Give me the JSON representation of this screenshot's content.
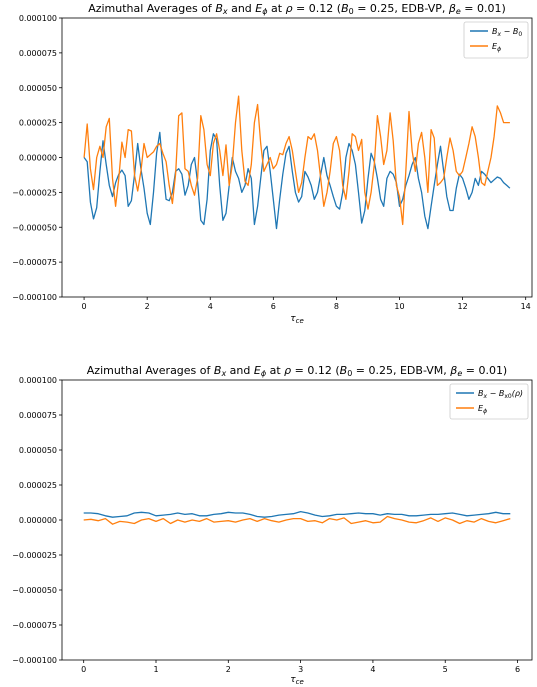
{
  "chart_data": [
    {
      "type": "line",
      "title": "Azimuthal Averages of B_x and E_φ at ρ = 0.12 (B_0 = 0.25, EDB-VP, β_e = 0.01)",
      "title_parts": {
        "p1": "Azimuthal Averages of ",
        "p2": "B",
        "p3": "x",
        "p4": " and ",
        "p5": "E",
        "p6": "ϕ",
        "p7": " at ",
        "p8": "ρ",
        "p9": " = 0.12 (",
        "p10": "B",
        "p11": "0",
        "p12": " = 0.25, EDB-VP, ",
        "p13": "β",
        "p14": "e",
        "p15": " = 0.01)"
      },
      "xlabel": "τ_ce",
      "xlabel_parts": {
        "main": "τ",
        "sub": "ce"
      },
      "ylabel": "",
      "xlim": [
        -0.7,
        14.2
      ],
      "ylim": [
        -0.0001,
        0.0001
      ],
      "xticks": [
        0,
        2,
        4,
        6,
        8,
        10,
        12,
        14
      ],
      "xtick_labels": [
        "0",
        "2",
        "4",
        "6",
        "8",
        "10",
        "12",
        "14"
      ],
      "yticks": [
        -0.0001,
        -7.5e-05,
        -5e-05,
        -2.5e-05,
        0,
        2.5e-05,
        5e-05,
        7.5e-05,
        0.0001
      ],
      "ytick_labels": [
        "−0.000100",
        "−0.000075",
        "−0.000050",
        "−0.000025",
        "0.000000",
        "0.000025",
        "0.000050",
        "0.000075",
        "0.000100"
      ],
      "grid": false,
      "legend_position": "top-right",
      "legend": [
        {
          "label": "B_x − B_0",
          "parts": {
            "a": "B",
            "b": "x",
            "c": " − ",
            "d": "B",
            "e": "0"
          },
          "color": "#1f77b4"
        },
        {
          "label": "E_ϕ",
          "parts": {
            "a": "E",
            "b": "ϕ"
          },
          "color": "#ff7f0e"
        }
      ],
      "series": [
        {
          "name": "B_x − B_0",
          "color": "#1f77b4",
          "x": [
            0.0,
            0.1,
            0.2,
            0.3,
            0.4,
            0.5,
            0.6,
            0.7,
            0.8,
            0.9,
            1.0,
            1.1,
            1.2,
            1.3,
            1.4,
            1.5,
            1.6,
            1.7,
            1.8,
            1.9,
            2.0,
            2.1,
            2.2,
            2.3,
            2.4,
            2.5,
            2.6,
            2.7,
            2.8,
            2.9,
            3.0,
            3.1,
            3.2,
            3.3,
            3.4,
            3.5,
            3.6,
            3.7,
            3.8,
            3.9,
            4.0,
            4.1,
            4.2,
            4.3,
            4.4,
            4.5,
            4.6,
            4.7,
            4.8,
            4.9,
            5.0,
            5.1,
            5.2,
            5.3,
            5.4,
            5.5,
            5.6,
            5.7,
            5.8,
            5.9,
            6.0,
            6.1,
            6.2,
            6.3,
            6.4,
            6.5,
            6.6,
            6.7,
            6.8,
            6.9,
            7.0,
            7.1,
            7.2,
            7.3,
            7.4,
            7.5,
            7.6,
            7.7,
            7.8,
            7.9,
            8.0,
            8.1,
            8.2,
            8.3,
            8.4,
            8.5,
            8.6,
            8.7,
            8.8,
            8.9,
            9.0,
            9.1,
            9.2,
            9.3,
            9.4,
            9.5,
            9.6,
            9.7,
            9.8,
            9.9,
            10.0,
            10.1,
            10.2,
            10.3,
            10.4,
            10.5,
            10.6,
            10.7,
            10.8,
            10.9,
            11.0,
            11.1,
            11.2,
            11.3,
            11.4,
            11.5,
            11.6,
            11.7,
            11.8,
            11.9,
            12.0,
            12.1,
            12.2,
            12.3,
            12.4,
            12.5,
            12.6,
            12.7,
            12.8,
            12.9,
            13.0,
            13.1,
            13.2,
            13.3,
            13.4,
            13.5
          ],
          "y": [
            0.0,
            -3e-06,
            -3.2e-05,
            -4.4e-05,
            -3.6e-05,
            -1e-05,
            1.2e-05,
            -5e-06,
            -2e-05,
            -2.8e-05,
            -1.8e-05,
            -1.2e-05,
            -9e-06,
            -1.3e-05,
            -3.5e-05,
            -3.1e-05,
            -1.2e-05,
            1e-05,
            -8e-06,
            -2.2e-05,
            -4e-05,
            -4.8e-05,
            -2.5e-05,
            3e-06,
            1.8e-05,
            -8e-06,
            -3e-05,
            -3.1e-05,
            -2.5e-05,
            -1e-05,
            -8e-06,
            -1.2e-05,
            -2.7e-05,
            -2e-05,
            -5e-06,
            0.0,
            -1.8e-05,
            -4.5e-05,
            -4.8e-05,
            -3e-05,
            5e-06,
            1.7e-05,
            1.3e-05,
            -2e-05,
            -4.5e-05,
            -4e-05,
            -2e-05,
            0.0,
            -1e-05,
            -1.5e-05,
            -2.5e-05,
            -2e-05,
            -8e-06,
            -1.5e-05,
            -4.8e-05,
            -3.5e-05,
            -1.5e-05,
            5e-06,
            8e-06,
            -1e-05,
            -3e-05,
            -5.1e-05,
            -3e-05,
            -1.2e-05,
            3e-06,
            8e-06,
            -1e-05,
            -2.5e-05,
            -3.2e-05,
            -2.8e-05,
            -1e-05,
            -1.4e-05,
            -2e-05,
            -3e-05,
            -2.5e-05,
            -1.2e-05,
            0.0,
            -1.3e-05,
            -2e-05,
            -2.8e-05,
            -3.5e-05,
            -3.7e-05,
            -2.5e-05,
            0.0,
            1e-05,
            5e-06,
            -5e-06,
            -2.5e-05,
            -4.7e-05,
            -3.8e-05,
            -1.5e-05,
            3e-06,
            -3e-06,
            -1.5e-05,
            -3e-05,
            -3.5e-05,
            -1.5e-05,
            -1e-05,
            -1.2e-05,
            -1.8e-05,
            -3.5e-05,
            -3e-05,
            -2e-05,
            -1.3e-05,
            -5e-06,
            0.0,
            -1.5e-05,
            -2.5e-05,
            -4.2e-05,
            -5.1e-05,
            -3.5e-05,
            -2e-05,
            -5e-06,
            8e-06,
            -1e-05,
            -2.8e-05,
            -3.8e-05,
            -3.8e-05,
            -2.2e-05,
            -1.2e-05,
            -1.5e-05,
            -2.2e-05,
            -3e-05,
            -2.5e-05,
            -1.5e-05,
            -2e-05,
            -1e-05,
            -1.2e-05,
            -1.5e-05,
            -1.8e-05,
            -1.6e-05,
            -1.4e-05,
            -1.5e-05,
            -1.8e-05,
            -2e-05,
            -2.2e-05
          ]
        },
        {
          "name": "E_ϕ",
          "color": "#ff7f0e",
          "x": [
            0.0,
            0.1,
            0.2,
            0.3,
            0.4,
            0.5,
            0.6,
            0.7,
            0.8,
            0.9,
            1.0,
            1.1,
            1.2,
            1.3,
            1.4,
            1.5,
            1.6,
            1.7,
            1.8,
            1.9,
            2.0,
            2.1,
            2.2,
            2.3,
            2.4,
            2.5,
            2.6,
            2.7,
            2.8,
            2.9,
            3.0,
            3.1,
            3.2,
            3.3,
            3.4,
            3.5,
            3.6,
            3.7,
            3.8,
            3.9,
            4.0,
            4.1,
            4.2,
            4.3,
            4.4,
            4.5,
            4.6,
            4.7,
            4.8,
            4.9,
            5.0,
            5.1,
            5.2,
            5.3,
            5.4,
            5.5,
            5.6,
            5.7,
            5.8,
            5.9,
            6.0,
            6.1,
            6.2,
            6.3,
            6.4,
            6.5,
            6.6,
            6.7,
            6.8,
            6.9,
            7.0,
            7.1,
            7.2,
            7.3,
            7.4,
            7.5,
            7.6,
            7.7,
            7.8,
            7.9,
            8.0,
            8.1,
            8.2,
            8.3,
            8.4,
            8.5,
            8.6,
            8.7,
            8.8,
            8.9,
            9.0,
            9.1,
            9.2,
            9.3,
            9.4,
            9.5,
            9.6,
            9.7,
            9.8,
            9.9,
            10.0,
            10.1,
            10.2,
            10.3,
            10.4,
            10.5,
            10.6,
            10.7,
            10.8,
            10.9,
            11.0,
            11.1,
            11.2,
            11.3,
            11.4,
            11.5,
            11.6,
            11.7,
            11.8,
            11.9,
            12.0,
            12.1,
            12.2,
            12.3,
            12.4,
            12.5,
            12.6,
            12.7,
            12.8,
            12.9,
            13.0,
            13.1,
            13.2,
            13.3,
            13.4,
            13.5
          ],
          "y": [
            0.0,
            2.4e-05,
            -8e-06,
            -2.3e-05,
            0.0,
            8e-06,
            0.0,
            2.2e-05,
            2.8e-05,
            -1.5e-05,
            -3.5e-05,
            -1.5e-05,
            1.1e-05,
            0.0,
            2e-05,
            1.9e-05,
            -1.3e-05,
            -2.4e-05,
            -1e-05,
            1e-05,
            0.0,
            2e-06,
            4e-06,
            8e-06,
            1e-05,
            3e-06,
            -3e-06,
            -2e-05,
            -3.3e-05,
            -1.2e-05,
            3e-05,
            3.2e-05,
            -8e-06,
            -1e-05,
            -2e-05,
            -2.7e-05,
            -1.5e-05,
            3e-05,
            2e-05,
            -5e-06,
            -1.3e-05,
            1e-05,
            1.7e-05,
            5e-06,
            -1.3e-05,
            9e-06,
            -2e-05,
            -5e-06,
            2.5e-05,
            4.4e-05,
            5e-06,
            -1.7e-05,
            -2e-05,
            -5e-06,
            2.5e-05,
            3.8e-05,
            1e-05,
            -1e-05,
            -5e-06,
            0.0,
            -8e-06,
            -5e-06,
            3e-06,
            2e-06,
            1e-05,
            1.5e-05,
            5e-06,
            -1e-05,
            -2.5e-05,
            -1.8e-05,
            0.0,
            1.5e-05,
            1.3e-05,
            1.7e-05,
            5e-06,
            -1.5e-05,
            -3.5e-05,
            -2.5e-05,
            -1e-05,
            1e-05,
            1.5e-05,
            5e-06,
            -2e-05,
            -3e-05,
            -1e-05,
            1.7e-05,
            1.5e-05,
            5e-06,
            1.3e-05,
            -2.5e-05,
            -3.7e-05,
            -2.5e-05,
            -5e-06,
            3e-05,
            1.5e-05,
            -5e-06,
            5e-06,
            3.2e-05,
            1.2e-05,
            -2e-05,
            -2.8e-05,
            -4.8e-05,
            -1e-05,
            3.3e-05,
            5e-06,
            -1e-05,
            1e-05,
            1.8e-05,
            0.0,
            -2.5e-05,
            2e-05,
            1.4e-05,
            -2e-05,
            -1.8e-05,
            -1.5e-05,
            0.0,
            1.4e-05,
            5e-06,
            -1e-05,
            -1.3e-05,
            -1e-05,
            0.0,
            1e-05,
            2.2e-05,
            1.5e-05,
            0.0,
            -1.8e-05,
            -2e-05,
            -1e-05,
            0.0,
            1.5e-05,
            3.7e-05,
            3.2e-05,
            2.5e-05,
            2.5e-05,
            2.5e-05
          ]
        }
      ]
    },
    {
      "type": "line",
      "title": "Azimuthal Averages of B_x and E_φ at ρ = 0.12 (B_0 = 0.25, EDB-VM, β_e = 0.01)",
      "title_parts": {
        "p1": "Azimuthal Averages of ",
        "p2": "B",
        "p3": "x",
        "p4": " and ",
        "p5": "E",
        "p6": "ϕ",
        "p7": " at ",
        "p8": "ρ",
        "p9": " = 0.12 (",
        "p10": "B",
        "p11": "0",
        "p12": " = 0.25, EDB-VM, ",
        "p13": "β",
        "p14": "e",
        "p15": " = 0.01)"
      },
      "xlabel": "τ_ce",
      "xlabel_parts": {
        "main": "τ",
        "sub": "ce"
      },
      "ylabel": "",
      "xlim": [
        -0.3,
        6.2
      ],
      "ylim": [
        -0.0001,
        0.0001
      ],
      "xticks": [
        0,
        1,
        2,
        3,
        4,
        5,
        6
      ],
      "xtick_labels": [
        "0",
        "1",
        "2",
        "3",
        "4",
        "5",
        "6"
      ],
      "yticks": [
        -0.0001,
        -7.5e-05,
        -5e-05,
        -2.5e-05,
        0,
        2.5e-05,
        5e-05,
        7.5e-05,
        0.0001
      ],
      "ytick_labels": [
        "−0.000100",
        "−0.000075",
        "−0.000050",
        "−0.000025",
        "0.000000",
        "0.000025",
        "0.000050",
        "0.000075",
        "0.000100"
      ],
      "grid": false,
      "legend_position": "top-right",
      "legend": [
        {
          "label": "B_x − B_x0(ρ)",
          "parts": {
            "a": "B",
            "b": "x",
            "c": " − ",
            "d": "B",
            "e": "x0",
            "f": "(ρ)"
          },
          "color": "#1f77b4"
        },
        {
          "label": "E_ϕ",
          "parts": {
            "a": "E",
            "b": "ϕ"
          },
          "color": "#ff7f0e"
        }
      ],
      "series": [
        {
          "name": "B_x − B_x0(ρ)",
          "color": "#1f77b4",
          "x": [
            0.0,
            0.1,
            0.2,
            0.3,
            0.4,
            0.5,
            0.6,
            0.7,
            0.8,
            0.9,
            1.0,
            1.1,
            1.2,
            1.3,
            1.4,
            1.5,
            1.6,
            1.7,
            1.8,
            1.9,
            2.0,
            2.1,
            2.2,
            2.3,
            2.4,
            2.5,
            2.6,
            2.7,
            2.8,
            2.9,
            3.0,
            3.1,
            3.2,
            3.3,
            3.4,
            3.5,
            3.6,
            3.7,
            3.8,
            3.9,
            4.0,
            4.1,
            4.2,
            4.3,
            4.4,
            4.5,
            4.6,
            4.7,
            4.8,
            4.9,
            5.0,
            5.1,
            5.2,
            5.3,
            5.4,
            5.5,
            5.6,
            5.7,
            5.8,
            5.9
          ],
          "y": [
            5e-06,
            5e-06,
            4.5e-06,
            3e-06,
            2e-06,
            2.5e-06,
            3e-06,
            5e-06,
            5.5e-06,
            5e-06,
            3e-06,
            3.5e-06,
            4e-06,
            5e-06,
            4e-06,
            4.5e-06,
            3e-06,
            3e-06,
            4e-06,
            4.5e-06,
            5.5e-06,
            5e-06,
            5e-06,
            4e-06,
            2.5e-06,
            2e-06,
            2.5e-06,
            3.5e-06,
            4e-06,
            4.5e-06,
            6e-06,
            5e-06,
            3.5e-06,
            2.5e-06,
            3e-06,
            4e-06,
            4e-06,
            4.5e-06,
            5e-06,
            4.5e-06,
            4.5e-06,
            3.5e-06,
            4.5e-06,
            4e-06,
            4e-06,
            3e-06,
            3e-06,
            3.5e-06,
            4e-06,
            4e-06,
            4.5e-06,
            5e-06,
            4e-06,
            3e-06,
            3.5e-06,
            4e-06,
            4.5e-06,
            5.5e-06,
            4.5e-06,
            4.5e-06
          ]
        },
        {
          "name": "E_ϕ",
          "color": "#ff7f0e",
          "x": [
            0.0,
            0.1,
            0.2,
            0.3,
            0.4,
            0.5,
            0.6,
            0.7,
            0.8,
            0.9,
            1.0,
            1.1,
            1.2,
            1.3,
            1.4,
            1.5,
            1.6,
            1.7,
            1.8,
            1.9,
            2.0,
            2.1,
            2.2,
            2.3,
            2.4,
            2.5,
            2.6,
            2.7,
            2.8,
            2.9,
            3.0,
            3.1,
            3.2,
            3.3,
            3.4,
            3.5,
            3.6,
            3.7,
            3.8,
            3.9,
            4.0,
            4.1,
            4.2,
            4.3,
            4.4,
            4.5,
            4.6,
            4.7,
            4.8,
            4.9,
            5.0,
            5.1,
            5.2,
            5.3,
            5.4,
            5.5,
            5.6,
            5.7,
            5.8,
            5.9
          ],
          "y": [
            0.0,
            5e-07,
            -5e-07,
            1e-06,
            -3e-06,
            -1e-06,
            -1.5e-06,
            -2.5e-06,
            0.0,
            1e-06,
            -1e-06,
            1e-06,
            -2.5e-06,
            0.0,
            -1.5e-06,
            0.0,
            -1e-06,
            1e-06,
            -1.5e-06,
            -1e-06,
            -5e-07,
            -1.5e-06,
            0.0,
            1e-06,
            -1e-06,
            1e-06,
            -5e-07,
            -1.5e-06,
            0.0,
            1e-06,
            1e-06,
            -1e-06,
            -5e-07,
            -2e-06,
            1e-06,
            0.0,
            1.5e-06,
            -2.5e-06,
            -1.5e-06,
            -5e-07,
            -2e-06,
            -1.5e-06,
            2.5e-06,
            1e-06,
            0.0,
            -1.5e-06,
            -2e-06,
            -5e-07,
            1.5e-06,
            -1e-06,
            1.5e-06,
            0.0,
            -2.5e-06,
            -5e-07,
            -1.5e-06,
            1e-06,
            -1e-06,
            -2e-06,
            -5e-07,
            1e-06
          ]
        }
      ]
    }
  ]
}
